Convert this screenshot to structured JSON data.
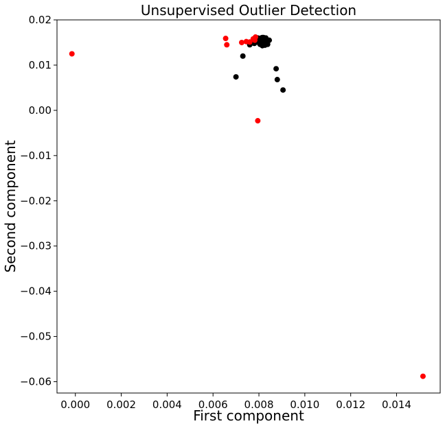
{
  "chart_data": {
    "type": "scatter",
    "title": "Unsupervised Outlier Detection",
    "xlabel": "First component",
    "ylabel": "Second component",
    "xlim": [
      -0.0008,
      0.0159
    ],
    "ylim": [
      -0.0625,
      0.02
    ],
    "xticks": [
      0.0,
      0.002,
      0.004,
      0.006,
      0.008,
      0.01,
      0.012,
      0.014
    ],
    "xtick_labels": [
      "0.000",
      "0.002",
      "0.004",
      "0.006",
      "0.008",
      "0.010",
      "0.012",
      "0.014"
    ],
    "yticks": [
      0.02,
      0.01,
      0.0,
      -0.01,
      -0.02,
      -0.03,
      -0.04,
      -0.05,
      -0.06
    ],
    "ytick_labels": [
      "0.02",
      "0.01",
      "0.00",
      "−0.01",
      "−0.02",
      "−0.03",
      "−0.04",
      "−0.05",
      "−0.06"
    ],
    "grid": false,
    "series": [
      {
        "color": "#000000",
        "points": [
          [
            0.007,
            0.0074
          ],
          [
            0.0073,
            0.012
          ],
          [
            0.00875,
            0.0092
          ],
          [
            0.0088,
            0.0068
          ],
          [
            0.00905,
            0.0045
          ],
          [
            0.0076,
            0.0145
          ],
          [
            0.0078,
            0.0148
          ],
          [
            0.0079,
            0.0152
          ],
          [
            0.008,
            0.0158
          ],
          [
            0.0081,
            0.016
          ],
          [
            0.0082,
            0.0161
          ],
          [
            0.0083,
            0.016
          ],
          [
            0.00805,
            0.0146
          ],
          [
            0.00815,
            0.0143
          ],
          [
            0.00825,
            0.0147
          ],
          [
            0.00835,
            0.015
          ],
          [
            0.00845,
            0.0155
          ],
          [
            0.00812,
            0.0153
          ],
          [
            0.00822,
            0.0156
          ],
          [
            0.00798,
            0.015
          ],
          [
            0.00808,
            0.0155
          ],
          [
            0.00818,
            0.0149
          ],
          [
            0.00828,
            0.0153
          ],
          [
            0.00838,
            0.0146
          ],
          [
            0.00795,
            0.016
          ],
          [
            0.00815,
            0.0161
          ],
          [
            0.00803,
            0.0151
          ],
          [
            0.00826,
            0.0144
          ]
        ]
      },
      {
        "color": "#ff0000",
        "points": [
          [
            -0.00015,
            0.0125
          ],
          [
            0.00655,
            0.0159
          ],
          [
            0.0066,
            0.0145
          ],
          [
            0.00725,
            0.015
          ],
          [
            0.00745,
            0.0152
          ],
          [
            0.0076,
            0.0151
          ],
          [
            0.00775,
            0.0158
          ],
          [
            0.00785,
            0.0162
          ],
          [
            0.00782,
            0.0155
          ],
          [
            0.00795,
            -0.0023
          ],
          [
            0.01515,
            -0.0588
          ]
        ]
      }
    ]
  }
}
